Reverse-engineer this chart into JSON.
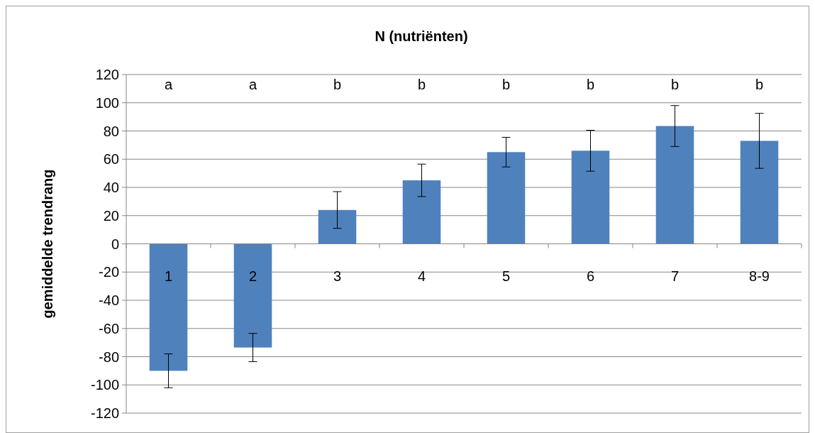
{
  "chart_data": {
    "type": "bar",
    "title": "N (nutriënten)",
    "ylabel": "gemiddelde trendrang",
    "categories": [
      "1",
      "2",
      "3",
      "4",
      "5",
      "6",
      "7",
      "8-9"
    ],
    "values": [
      -90,
      -73.5,
      24,
      45,
      65,
      66,
      83.5,
      73
    ],
    "errors": [
      12,
      10,
      13,
      11.5,
      10.5,
      14.5,
      14.5,
      19.5
    ],
    "color": "#4f81bd",
    "ylim": [
      -120,
      120
    ],
    "yticks": [
      -120,
      -100,
      -80,
      -60,
      -40,
      -20,
      0,
      20,
      40,
      60,
      80,
      100,
      120
    ],
    "grid": "y",
    "annotations": [
      "a",
      "a",
      "b",
      "b",
      "b",
      "b",
      "b",
      "b"
    ]
  }
}
